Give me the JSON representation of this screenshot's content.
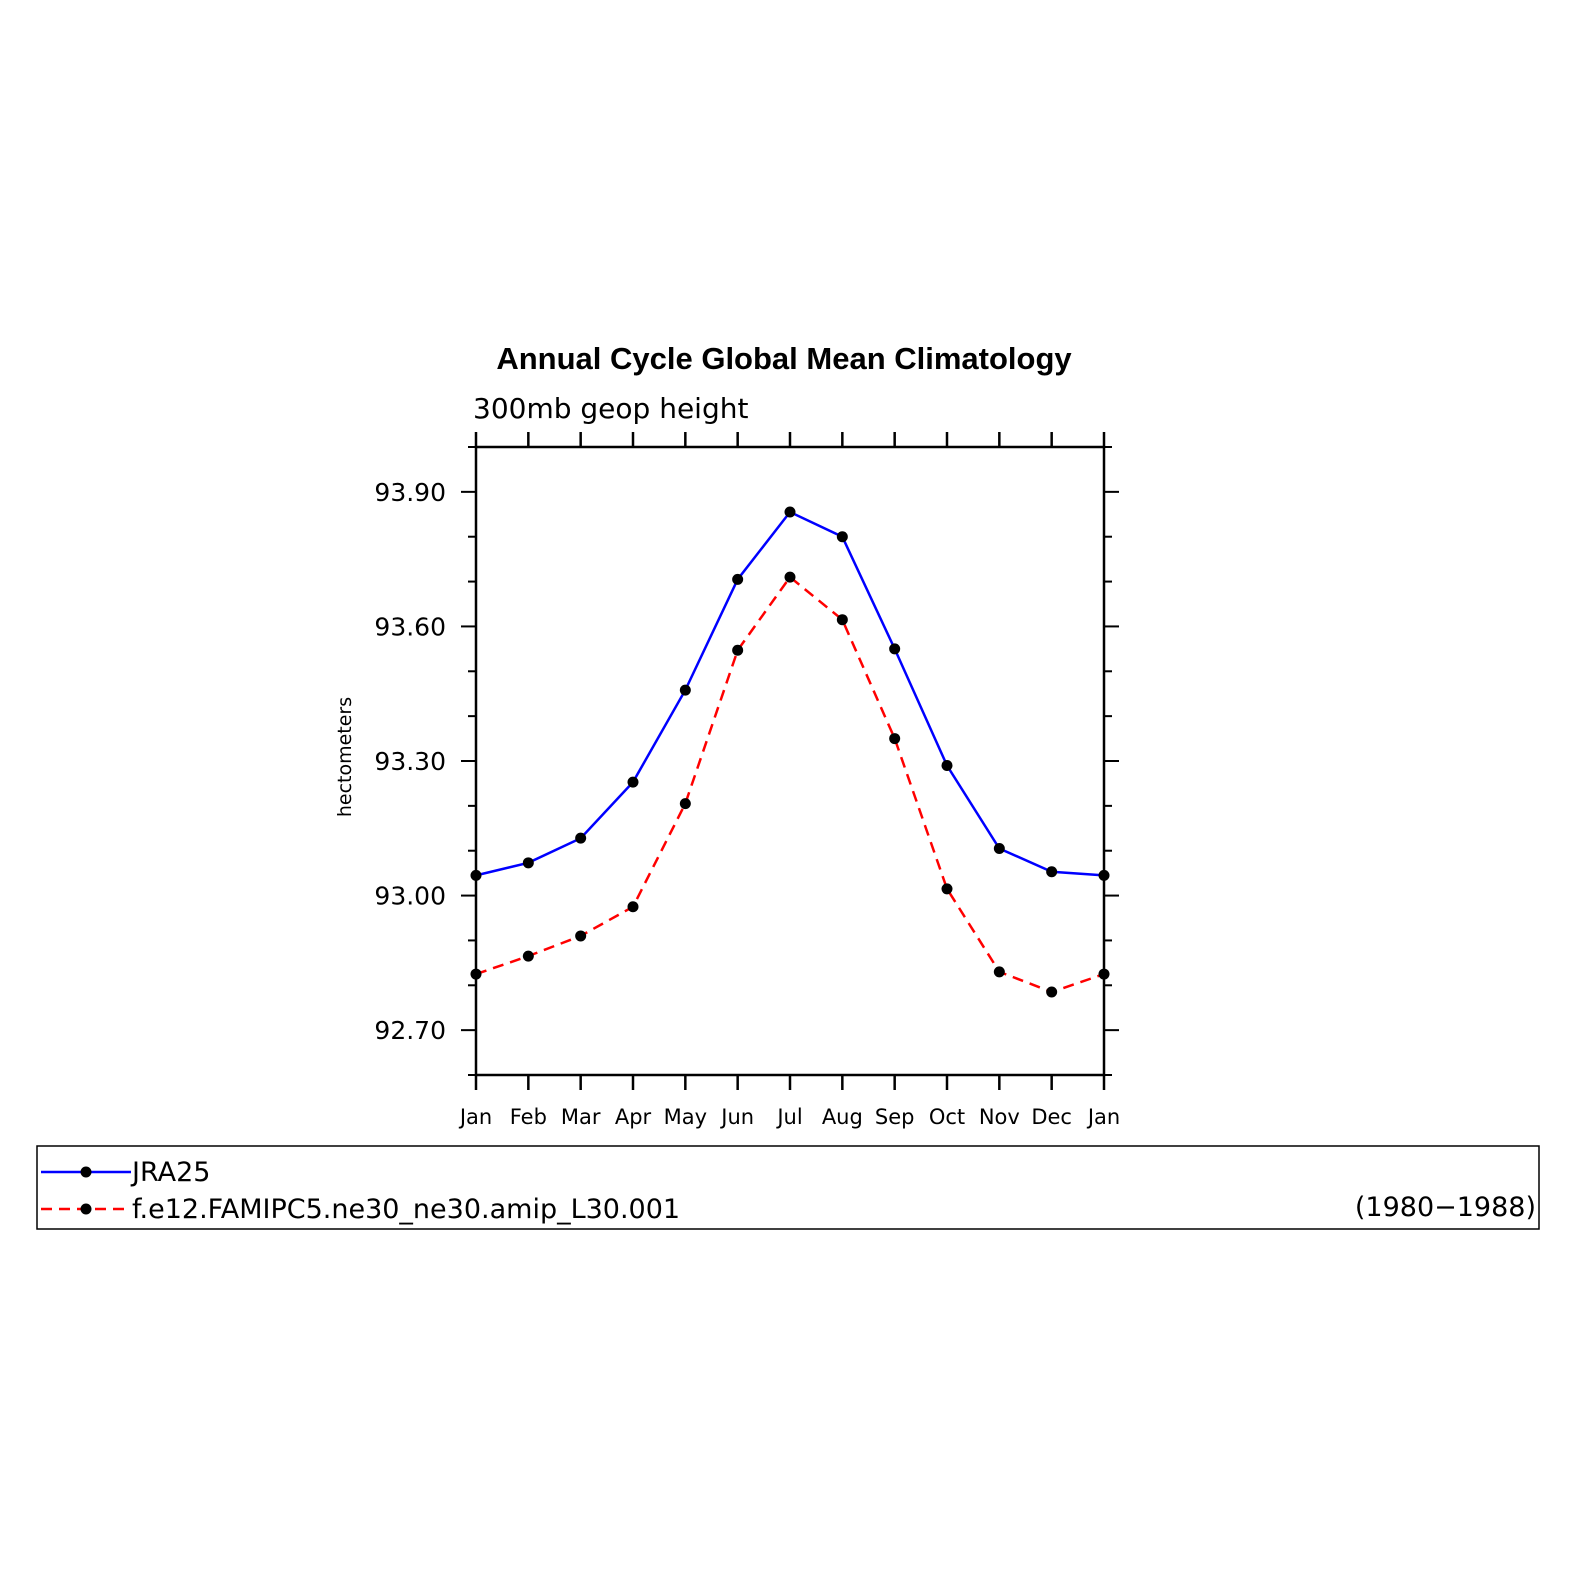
{
  "chart_data": {
    "type": "line",
    "title": "Annual Cycle Global Mean Climatology",
    "subtitle": "300mb geop height",
    "xlabel": "",
    "ylabel": "hectometers",
    "categories": [
      "Jan",
      "Feb",
      "Mar",
      "Apr",
      "May",
      "Jun",
      "Jul",
      "Aug",
      "Sep",
      "Oct",
      "Nov",
      "Dec",
      "Jan"
    ],
    "ylim": [
      92.6,
      94.0
    ],
    "yticks": [
      "93.90",
      "93.60",
      "93.30",
      "93.00",
      "92.70"
    ],
    "ytick_values": [
      93.9,
      93.6,
      93.3,
      93.0,
      92.7
    ],
    "grid": false,
    "legend_position": "bottom",
    "period": "(1980−1988)",
    "series": [
      {
        "name": "JRA25",
        "color": "#0000ff",
        "line_style": "solid",
        "marker": "circle",
        "values": [
          93.045,
          93.073,
          93.128,
          93.253,
          93.458,
          93.705,
          93.855,
          93.8,
          93.55,
          93.29,
          93.105,
          93.053,
          93.045
        ]
      },
      {
        "name": "f.e12.FAMIPC5.ne30_ne30.amip_L30.001",
        "color": "#ff0000",
        "line_style": "dashed",
        "marker": "circle",
        "values": [
          92.825,
          92.865,
          92.91,
          92.975,
          93.205,
          93.547,
          93.71,
          93.615,
          93.35,
          93.015,
          92.83,
          92.785,
          92.825
        ]
      }
    ]
  }
}
